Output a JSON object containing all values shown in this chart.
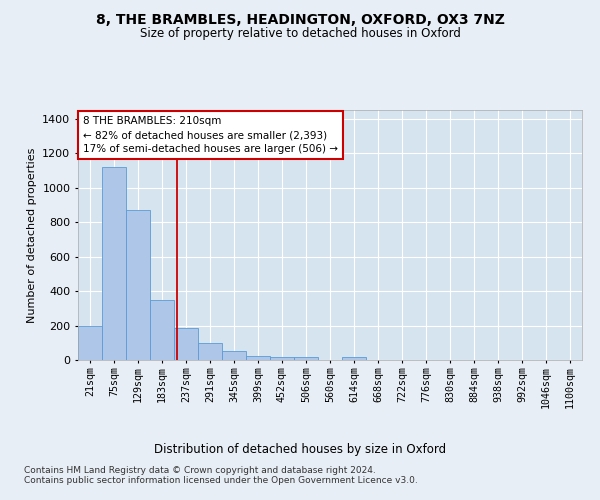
{
  "title1": "8, THE BRAMBLES, HEADINGTON, OXFORD, OX3 7NZ",
  "title2": "Size of property relative to detached houses in Oxford",
  "xlabel": "Distribution of detached houses by size in Oxford",
  "ylabel": "Number of detached properties",
  "bin_labels": [
    "21sqm",
    "75sqm",
    "129sqm",
    "183sqm",
    "237sqm",
    "291sqm",
    "345sqm",
    "399sqm",
    "452sqm",
    "506sqm",
    "560sqm",
    "614sqm",
    "668sqm",
    "722sqm",
    "776sqm",
    "830sqm",
    "884sqm",
    "938sqm",
    "992sqm",
    "1046sqm",
    "1100sqm"
  ],
  "bar_heights": [
    195,
    1120,
    870,
    350,
    185,
    100,
    50,
    25,
    20,
    20,
    0,
    15,
    0,
    0,
    0,
    0,
    0,
    0,
    0,
    0,
    0
  ],
  "bar_color": "#aec6e8",
  "bar_edge_color": "#5b9bd5",
  "vline_x": 3.63,
  "vline_color": "#cc0000",
  "annotation_line1": "8 THE BRAMBLES: 210sqm",
  "annotation_line2": "← 82% of detached houses are smaller (2,393)",
  "annotation_line3": "17% of semi-detached houses are larger (506) →",
  "annotation_box_color": "#ffffff",
  "annotation_box_edge": "#cc0000",
  "ylim": [
    0,
    1450
  ],
  "yticks": [
    0,
    200,
    400,
    600,
    800,
    1000,
    1200,
    1400
  ],
  "footer1": "Contains HM Land Registry data © Crown copyright and database right 2024.",
  "footer2": "Contains public sector information licensed under the Open Government Licence v3.0.",
  "bg_color": "#e8eef5",
  "plot_bg_color": "#d6e4f0"
}
